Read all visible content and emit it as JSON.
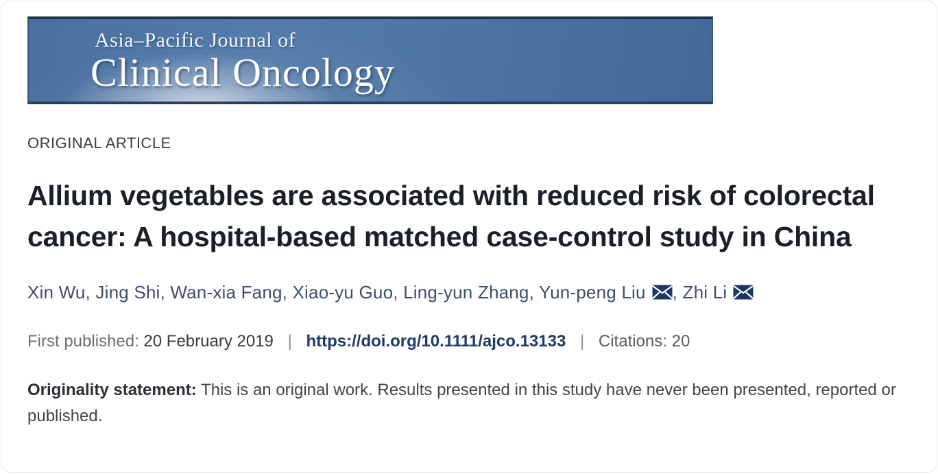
{
  "journal_banner": {
    "line1": "Asia–Pacific Journal of",
    "line2": "Clinical Oncology",
    "bg_color": "#4d74a4",
    "border_color": "#203349"
  },
  "article": {
    "category": "ORIGINAL ARTICLE",
    "title": "Allium vegetables are associated with reduced risk of colorectal cancer: A hospital-based matched case-control study in China",
    "authors": [
      {
        "name": "Xin Wu",
        "email": false
      },
      {
        "name": "Jing Shi",
        "email": false
      },
      {
        "name": "Wan-xia Fang",
        "email": false
      },
      {
        "name": "Xiao-yu Guo",
        "email": false
      },
      {
        "name": "Ling-yun Zhang",
        "email": false
      },
      {
        "name": "Yun-peng Liu",
        "email": true
      },
      {
        "name": "Zhi Li",
        "email": true
      }
    ],
    "author_separator": ", ",
    "email_icon_name": "envelope-icon",
    "email_icon_color": "#1d3866"
  },
  "publication": {
    "first_published_label": "First published:",
    "first_published_date": "20 February 2019",
    "separator": "|",
    "doi_url": "https://doi.org/10.1111/ajco.13133",
    "citations_label": "Citations:",
    "citations_count": "20"
  },
  "originality": {
    "label": "Originality statement:",
    "text": "This is an original work. Results presented in this study have never been presented, reported or published."
  },
  "colors": {
    "author_text": "#3f4e6d",
    "doi_link": "#1f3a63",
    "title_text": "#1b1f26"
  }
}
